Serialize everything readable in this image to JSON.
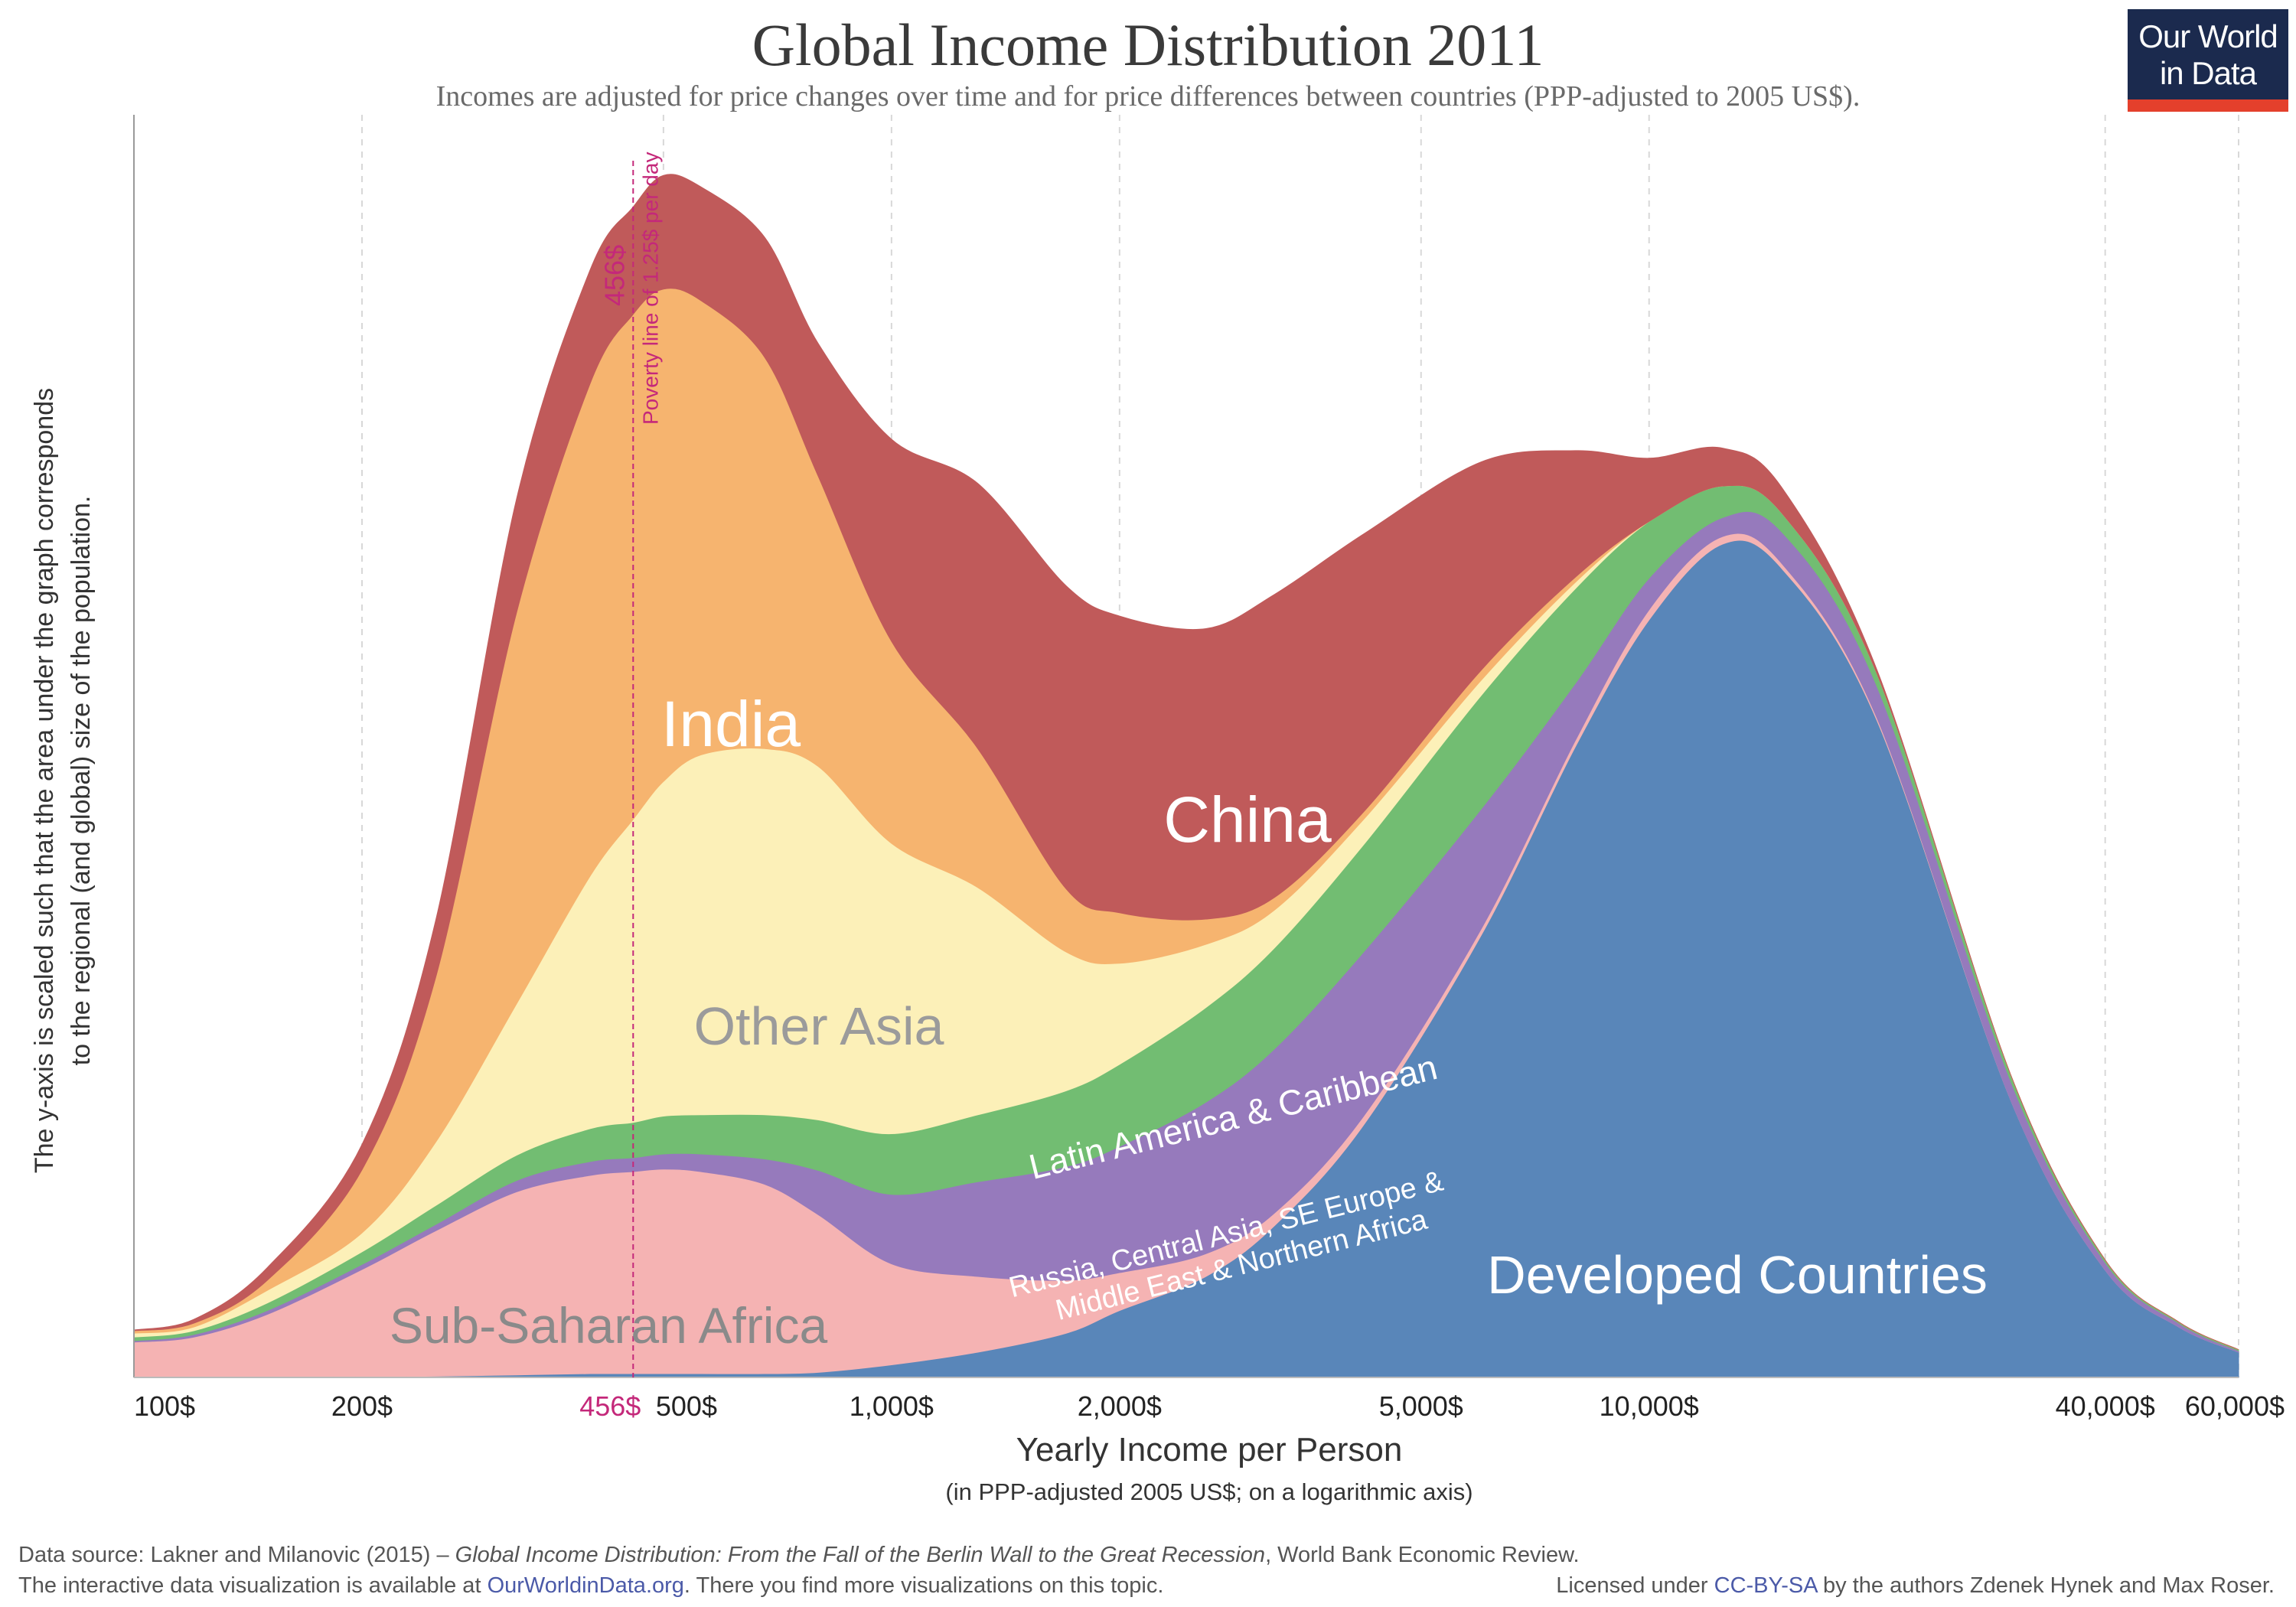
{
  "title": "Global Income Distribution 2011",
  "subtitle": "Incomes are adjusted for price changes over time and for price differences between countries (PPP-adjusted to 2005 US$).",
  "logo": {
    "line1": "Our World",
    "line2": "in Data"
  },
  "colors": {
    "brand_navy": "#1b2a4e",
    "brand_red": "#e4402c",
    "poverty_line": "#c4287a"
  },
  "footer": {
    "source_prefix": "Data source: Lakner and Milanovic (2015) – ",
    "source_title": "Global Income Distribution: From the Fall of the Berlin Wall to the Great Recession",
    "source_suffix": ", World Bank Economic Review.",
    "interactive_prefix": "The interactive data visualization is available at ",
    "interactive_link": "OurWorldinData.org",
    "interactive_suffix": ". There you find more visualizations on this topic.",
    "license_prefix": "Licensed under ",
    "license_link": "CC-BY-SA",
    "license_suffix": " by the authors Zdenek Hynek and Max Roser."
  },
  "chart_data": {
    "type": "area",
    "stacked": true,
    "title": "Global Income Distribution 2011",
    "xlabel": "Yearly Income per Person",
    "xlabel_sub": "(in PPP-adjusted 2005 US$; on a logarithmic axis)",
    "ylabel": "The y-axis is scaled such that the area under the graph corresponds to the regional (and global) size of the population.",
    "x_scale": "log",
    "xlim": [
      100,
      60000
    ],
    "ylim": [
      0,
      100
    ],
    "grid": "vertical dashed",
    "x_ticks": [
      {
        "value": 100,
        "label": "100$"
      },
      {
        "value": 200,
        "label": "200$"
      },
      {
        "value": 456,
        "label": "456$",
        "highlight": true
      },
      {
        "value": 500,
        "label": "500$"
      },
      {
        "value": 1000,
        "label": "1,000$"
      },
      {
        "value": 2000,
        "label": "2,000$"
      },
      {
        "value": 5000,
        "label": "5,000$"
      },
      {
        "value": 10000,
        "label": "10,000$"
      },
      {
        "value": 40000,
        "label": "40,000$"
      },
      {
        "value": 60000,
        "label": "60,000$"
      }
    ],
    "annotation": {
      "x": 456,
      "value_label": "456$",
      "text": "Poverty line of 1.25$ per day"
    },
    "x": [
      100,
      120,
      150,
      200,
      250,
      320,
      400,
      456,
      500,
      560,
      680,
      800,
      1000,
      1300,
      1700,
      2000,
      2600,
      3200,
      4200,
      6000,
      8000,
      10000,
      12500,
      15000,
      20000,
      30000,
      40000,
      50000,
      60000
    ],
    "series": [
      {
        "name": "Developed Countries",
        "color": "#5986b9",
        "values": [
          0,
          0,
          0,
          0.05,
          0.1,
          0.2,
          0.3,
          0.3,
          0.3,
          0.3,
          0.3,
          0.4,
          1,
          2,
          3.5,
          5.3,
          8,
          12,
          20,
          35,
          50,
          60,
          66,
          64,
          52,
          22,
          8.5,
          4,
          2
        ]
      },
      {
        "name": "Sub-Saharan Africa",
        "color": "#f5b3b3",
        "values": [
          2.8,
          3.2,
          5,
          8.5,
          11.5,
          14.5,
          15.7,
          16,
          16.2,
          16,
          15,
          12.5,
          8,
          6,
          4.2,
          3,
          1.8,
          1,
          0.7,
          0.5,
          0.5,
          0.8,
          0.6,
          0.4,
          0.2,
          0,
          0,
          0,
          0
        ]
      },
      {
        "name": "Russia, Central Asia, SE Europe & Middle East & Northern Africa",
        "color": "#967abc",
        "values": [
          0.1,
          0.2,
          0.3,
          0.4,
          0.5,
          0.9,
          1.1,
          1.1,
          1.2,
          1.4,
          2,
          3.5,
          5.5,
          7.5,
          9,
          10,
          12,
          13,
          13,
          9.5,
          4.5,
          2.5,
          1.5,
          2.5,
          2.5,
          1.5,
          0.6,
          0.3,
          0.1
        ]
      },
      {
        "name": "Latin America & Caribbean",
        "color": "#72bd72",
        "values": [
          0.3,
          0.3,
          0.6,
          1,
          1.5,
          2,
          2.6,
          2.8,
          3,
          3.1,
          3.5,
          4,
          4.8,
          5.3,
          6,
          6.5,
          7.5,
          8,
          8.5,
          9,
          7.5,
          4.5,
          2.5,
          1.5,
          1,
          0.5,
          0.2,
          0.1,
          0.1
        ]
      },
      {
        "name": "Other Asia",
        "color": "#fcf0b8",
        "values": [
          0.3,
          0.3,
          1,
          1.5,
          5,
          12,
          20,
          24,
          26.5,
          28.5,
          29,
          28,
          23,
          18,
          11,
          8,
          5,
          3,
          2,
          1.2,
          0.5,
          0,
          0,
          0,
          0,
          0,
          0,
          0,
          0
        ]
      },
      {
        "name": "India",
        "color": "#f6b46f",
        "values": [
          0.2,
          0.3,
          0.8,
          5,
          13,
          31,
          39,
          40,
          39,
          36,
          31,
          23,
          16,
          11,
          5,
          4,
          2,
          1,
          0.6,
          0.8,
          0.4,
          0,
          0,
          0,
          0,
          0,
          0,
          0,
          0
        ]
      },
      {
        "name": "China",
        "color": "#c05a5a",
        "values": [
          0.05,
          0.3,
          1,
          2,
          4.5,
          9,
          9,
          8.5,
          9,
          9,
          9.5,
          10.5,
          16,
          21,
          24,
          23.5,
          23,
          24,
          22,
          16.5,
          10,
          5,
          3,
          2,
          0.3,
          0,
          0,
          0,
          0
        ]
      }
    ],
    "labels": [
      {
        "text": "India",
        "series": "India"
      },
      {
        "text": "China",
        "series": "China"
      },
      {
        "text": "Other Asia",
        "series": "Other Asia"
      },
      {
        "text": "Latin America & Caribbean",
        "series": "Latin America & Caribbean"
      },
      {
        "text": "Russia, Central Asia, SE Europe &",
        "series": "Russia, Central Asia, SE Europe & Middle East & Northern Africa"
      },
      {
        "text": "Middle East & Northern Africa",
        "series": "Russia, Central Asia, SE Europe & Middle East & Northern Africa"
      },
      {
        "text": "Sub-Saharan Africa",
        "series": "Sub-Saharan Africa"
      },
      {
        "text": "Developed Countries",
        "series": "Developed Countries"
      }
    ]
  }
}
